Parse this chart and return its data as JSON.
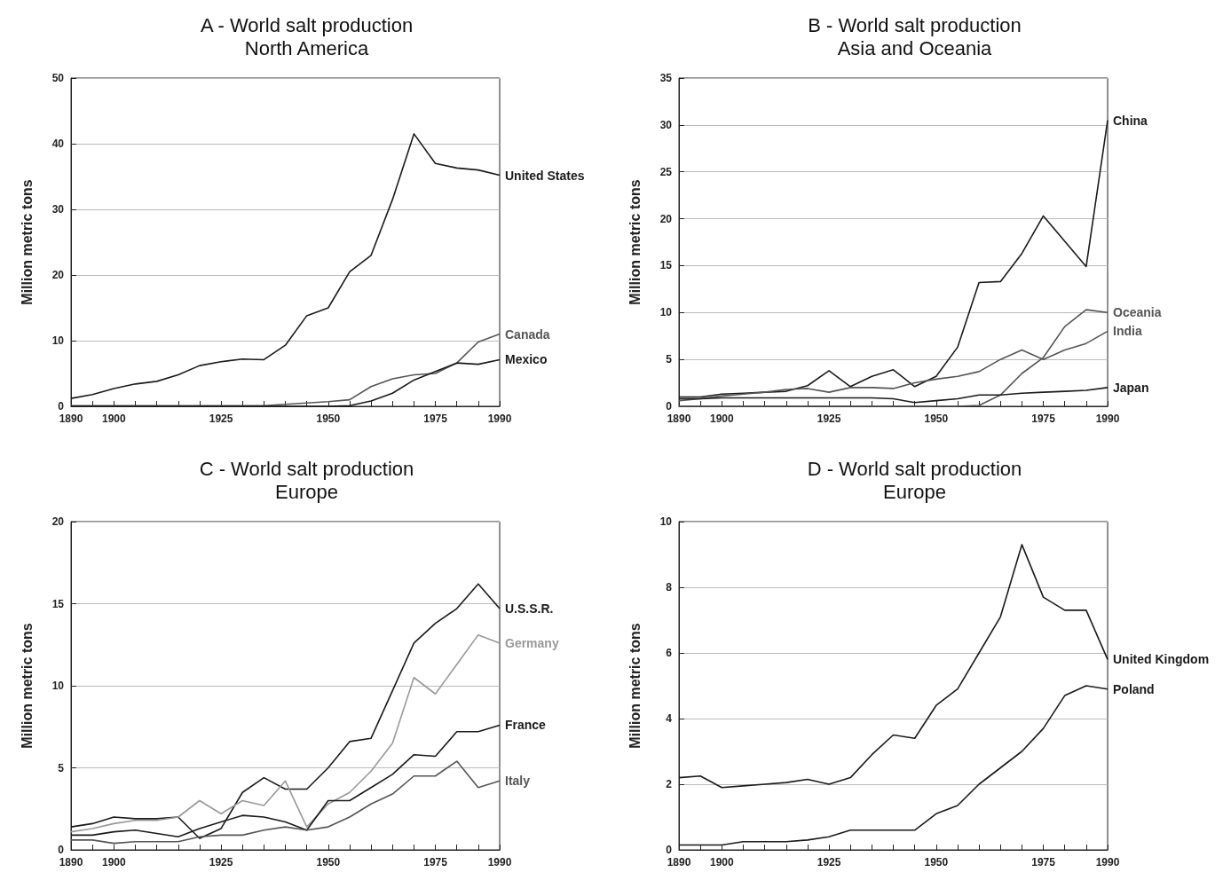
{
  "chart_data": [
    {
      "type": "line",
      "title": "A - World salt production",
      "subtitle": "North America",
      "ylabel": "Million metric tons",
      "x": [
        1890,
        1895,
        1900,
        1905,
        1910,
        1915,
        1920,
        1925,
        1930,
        1935,
        1940,
        1945,
        1950,
        1955,
        1960,
        1965,
        1970,
        1975,
        1980,
        1985,
        1990
      ],
      "series": [
        {
          "name": "United States",
          "color": "#1a1a1a",
          "values": [
            1.2,
            1.8,
            2.7,
            3.4,
            3.8,
            4.8,
            6.2,
            6.8,
            7.2,
            7.1,
            9.3,
            13.8,
            15,
            20.5,
            23,
            31.5,
            41.5,
            37,
            36.3,
            36,
            35.2
          ]
        },
        {
          "name": "Canada",
          "color": "#555555",
          "values": [
            0.1,
            0.1,
            0.1,
            0.1,
            0.1,
            0.1,
            0.1,
            0.1,
            0.1,
            0.1,
            0.3,
            0.5,
            0.7,
            1,
            3,
            4.2,
            4.8,
            5,
            6.6,
            9.8,
            11
          ]
        },
        {
          "name": "Mexico",
          "color": "#1a1a1a",
          "values": [
            0,
            0,
            0,
            0,
            0,
            0,
            0,
            0,
            0,
            0,
            0,
            0,
            0,
            0.1,
            0.8,
            2,
            4,
            5.3,
            6.6,
            6.4,
            7.1
          ]
        }
      ],
      "xlim": [
        1890,
        1990
      ],
      "xticks": [
        1890,
        {
          "value": 1895,
          "label": null
        },
        1900,
        {
          "value": 1905,
          "label": null
        },
        {
          "value": 1910,
          "label": null
        },
        {
          "value": 1915,
          "label": null
        },
        {
          "value": 1920,
          "label": null
        },
        1925,
        {
          "value": 1930,
          "label": null
        },
        {
          "value": 1935,
          "label": null
        },
        {
          "value": 1940,
          "label": null
        },
        {
          "value": 1945,
          "label": null
        },
        1950,
        {
          "value": 1955,
          "label": null
        },
        {
          "value": 1960,
          "label": null
        },
        {
          "value": 1965,
          "label": null
        },
        {
          "value": 1970,
          "label": null
        },
        1975,
        {
          "value": 1980,
          "label": null
        },
        {
          "value": 1985,
          "label": null
        },
        1990
      ],
      "ylim": [
        0,
        50
      ],
      "yticks": [
        0,
        10,
        20,
        30,
        40,
        50
      ],
      "grid": "y"
    },
    {
      "type": "line",
      "title": "B - World salt production",
      "subtitle": "Asia and Oceania",
      "ylabel": "Million metric tons",
      "x": [
        1890,
        1895,
        1900,
        1905,
        1910,
        1915,
        1920,
        1925,
        1930,
        1935,
        1940,
        1945,
        1950,
        1955,
        1960,
        1965,
        1970,
        1975,
        1980,
        1985,
        1990
      ],
      "series": [
        {
          "name": "China",
          "color": "#1a1a1a",
          "values": [
            1,
            1,
            1.3,
            1.4,
            1.5,
            1.6,
            2.2,
            3.8,
            2.1,
            3.2,
            3.9,
            2.1,
            3.2,
            6.3,
            13.2,
            13.3,
            16.3,
            20.3,
            17.6,
            14.9,
            30.5
          ]
        },
        {
          "name": "Oceania",
          "color": "#555555",
          "values": [
            0,
            0,
            0,
            0,
            0,
            0,
            0,
            0,
            0,
            0,
            0,
            0,
            0,
            0,
            0.1,
            1.2,
            3.5,
            5.2,
            8.5,
            10.3,
            10
          ]
        },
        {
          "name": "India",
          "color": "#555555",
          "values": [
            0.6,
            0.8,
            1.1,
            1.3,
            1.5,
            1.8,
            1.9,
            1.5,
            2,
            2,
            1.9,
            2.5,
            2.9,
            3.2,
            3.7,
            5,
            6,
            5,
            6,
            6.7,
            8
          ]
        },
        {
          "name": "Japan",
          "color": "#1a1a1a",
          "values": [
            0.8,
            0.8,
            0.9,
            0.9,
            0.9,
            0.9,
            0.9,
            0.9,
            0.9,
            0.9,
            0.8,
            0.4,
            0.6,
            0.8,
            1.2,
            1.2,
            1.4,
            1.5,
            1.6,
            1.7,
            2
          ]
        }
      ],
      "xlim": [
        1890,
        1990
      ],
      "xticks": [
        1890,
        {
          "value": 1895,
          "label": null
        },
        1900,
        {
          "value": 1905,
          "label": null
        },
        {
          "value": 1910,
          "label": null
        },
        {
          "value": 1915,
          "label": null
        },
        {
          "value": 1920,
          "label": null
        },
        1925,
        {
          "value": 1930,
          "label": null
        },
        {
          "value": 1935,
          "label": null
        },
        {
          "value": 1940,
          "label": null
        },
        {
          "value": 1945,
          "label": null
        },
        1950,
        {
          "value": 1955,
          "label": null
        },
        {
          "value": 1960,
          "label": null
        },
        {
          "value": 1965,
          "label": null
        },
        {
          "value": 1970,
          "label": null
        },
        1975,
        {
          "value": 1980,
          "label": null
        },
        {
          "value": 1985,
          "label": null
        },
        1990
      ],
      "ylim": [
        0,
        35
      ],
      "yticks": [
        0,
        5,
        10,
        15,
        20,
        25,
        30,
        35
      ],
      "grid": "y"
    },
    {
      "type": "line",
      "title": "C - World salt production",
      "subtitle": "Europe",
      "ylabel": "Million metric tons",
      "x": [
        1890,
        1895,
        1900,
        1905,
        1910,
        1915,
        1920,
        1925,
        1930,
        1935,
        1940,
        1945,
        1950,
        1955,
        1960,
        1965,
        1970,
        1975,
        1980,
        1985,
        1990
      ],
      "series": [
        {
          "name": "U.S.S.R.",
          "color": "#1a1a1a",
          "values": [
            1.4,
            1.6,
            2,
            1.9,
            1.9,
            2,
            0.7,
            1.3,
            3.5,
            4.4,
            3.7,
            3.7,
            5,
            6.6,
            6.8,
            9.7,
            12.6,
            13.8,
            14.7,
            16.2,
            14.7
          ]
        },
        {
          "name": "Germany",
          "color": "#999999",
          "values": [
            1.1,
            1.3,
            1.6,
            1.8,
            1.8,
            2,
            3,
            2.2,
            3,
            2.7,
            4.2,
            1.4,
            2.8,
            3.5,
            4.8,
            6.5,
            10.5,
            9.5,
            11.3,
            13.1,
            12.6
          ]
        },
        {
          "name": "France",
          "color": "#1a1a1a",
          "values": [
            0.9,
            0.9,
            1.1,
            1.2,
            1,
            0.8,
            1.3,
            1.7,
            2.1,
            2,
            1.7,
            1.2,
            3,
            3,
            3.8,
            4.6,
            5.8,
            5.7,
            7.2,
            7.2,
            7.6
          ]
        },
        {
          "name": "Italy",
          "color": "#555555",
          "values": [
            0.6,
            0.6,
            0.4,
            0.5,
            0.5,
            0.5,
            0.8,
            0.9,
            0.9,
            1.2,
            1.4,
            1.2,
            1.4,
            2,
            2.8,
            3.4,
            4.5,
            4.5,
            5.4,
            3.8,
            4.2
          ]
        }
      ],
      "xlim": [
        1890,
        1990
      ],
      "xticks": [
        1890,
        {
          "value": 1895,
          "label": null
        },
        1900,
        {
          "value": 1905,
          "label": null
        },
        {
          "value": 1910,
          "label": null
        },
        {
          "value": 1915,
          "label": null
        },
        {
          "value": 1920,
          "label": null
        },
        1925,
        {
          "value": 1930,
          "label": null
        },
        {
          "value": 1935,
          "label": null
        },
        {
          "value": 1940,
          "label": null
        },
        {
          "value": 1945,
          "label": null
        },
        1950,
        {
          "value": 1955,
          "label": null
        },
        {
          "value": 1960,
          "label": null
        },
        {
          "value": 1965,
          "label": null
        },
        {
          "value": 1970,
          "label": null
        },
        1975,
        {
          "value": 1980,
          "label": null
        },
        {
          "value": 1985,
          "label": null
        },
        1990
      ],
      "ylim": [
        0,
        20
      ],
      "yticks": [
        0,
        5,
        10,
        15,
        20
      ],
      "grid": "y"
    },
    {
      "type": "line",
      "title": "D - World salt production",
      "subtitle": "Europe",
      "ylabel": "Million metric tons",
      "x": [
        1890,
        1895,
        1900,
        1905,
        1910,
        1915,
        1920,
        1925,
        1930,
        1935,
        1940,
        1945,
        1950,
        1955,
        1960,
        1965,
        1970,
        1975,
        1980,
        1985,
        1990
      ],
      "series": [
        {
          "name": "United Kingdom",
          "color": "#1a1a1a",
          "values": [
            2.2,
            2.25,
            1.9,
            1.95,
            2,
            2.05,
            2.15,
            2,
            2.2,
            2.9,
            3.5,
            3.4,
            4.4,
            4.9,
            6,
            7.1,
            9.3,
            7.7,
            7.3,
            7.3,
            5.8
          ]
        },
        {
          "name": "Poland",
          "color": "#1a1a1a",
          "values": [
            0.15,
            0.15,
            0.15,
            0.25,
            0.25,
            0.25,
            0.3,
            0.4,
            0.6,
            0.6,
            0.6,
            0.6,
            1.1,
            1.35,
            2,
            2.5,
            3,
            3.7,
            4.7,
            5,
            4.9
          ]
        }
      ],
      "xlim": [
        1890,
        1990
      ],
      "xticks": [
        1890,
        {
          "value": 1895,
          "label": null
        },
        1900,
        {
          "value": 1905,
          "label": null
        },
        {
          "value": 1910,
          "label": null
        },
        {
          "value": 1915,
          "label": null
        },
        {
          "value": 1920,
          "label": null
        },
        1925,
        {
          "value": 1930,
          "label": null
        },
        {
          "value": 1935,
          "label": null
        },
        {
          "value": 1940,
          "label": null
        },
        {
          "value": 1945,
          "label": null
        },
        1950,
        {
          "value": 1955,
          "label": null
        },
        {
          "value": 1960,
          "label": null
        },
        {
          "value": 1965,
          "label": null
        },
        {
          "value": 1970,
          "label": null
        },
        1975,
        {
          "value": 1980,
          "label": null
        },
        {
          "value": 1985,
          "label": null
        },
        1990
      ],
      "ylim": [
        0,
        10
      ],
      "yticks": [
        0,
        2,
        4,
        6,
        8,
        10
      ],
      "grid": "y"
    }
  ]
}
